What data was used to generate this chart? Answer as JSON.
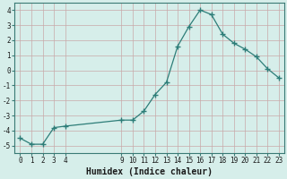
{
  "x": [
    0,
    1,
    2,
    3,
    4,
    9,
    10,
    11,
    12,
    13,
    14,
    15,
    16,
    17,
    18,
    19,
    20,
    21,
    22,
    23
  ],
  "y": [
    -4.5,
    -4.9,
    -4.9,
    -3.8,
    -3.7,
    -3.3,
    -3.3,
    -2.7,
    -1.6,
    -0.8,
    1.6,
    2.9,
    4.0,
    3.7,
    2.4,
    1.8,
    1.4,
    0.9,
    0.1,
    -0.5
  ],
  "x_ticks": [
    0,
    1,
    2,
    3,
    4,
    9,
    10,
    11,
    12,
    13,
    14,
    15,
    16,
    17,
    18,
    19,
    20,
    21,
    22,
    23
  ],
  "x_tick_labels": [
    "0",
    "1",
    "2",
    "3",
    "4",
    "9",
    "10",
    "11",
    "12",
    "13",
    "14",
    "15",
    "16",
    "17",
    "18",
    "19",
    "20",
    "21",
    "22",
    "23"
  ],
  "y_ticks": [
    -5,
    -4,
    -3,
    -2,
    -1,
    0,
    1,
    2,
    3,
    4
  ],
  "ylim": [
    -5.5,
    4.5
  ],
  "xlim": [
    -0.5,
    23.5
  ],
  "xlabel": "Humidex (Indice chaleur)",
  "line_color": "#2d7d78",
  "marker": "+",
  "marker_size": 4,
  "bg_color": "#d6eeea",
  "grid_color": "#c9a8a8",
  "tick_fontsize": 5.5,
  "label_fontsize": 7.0
}
